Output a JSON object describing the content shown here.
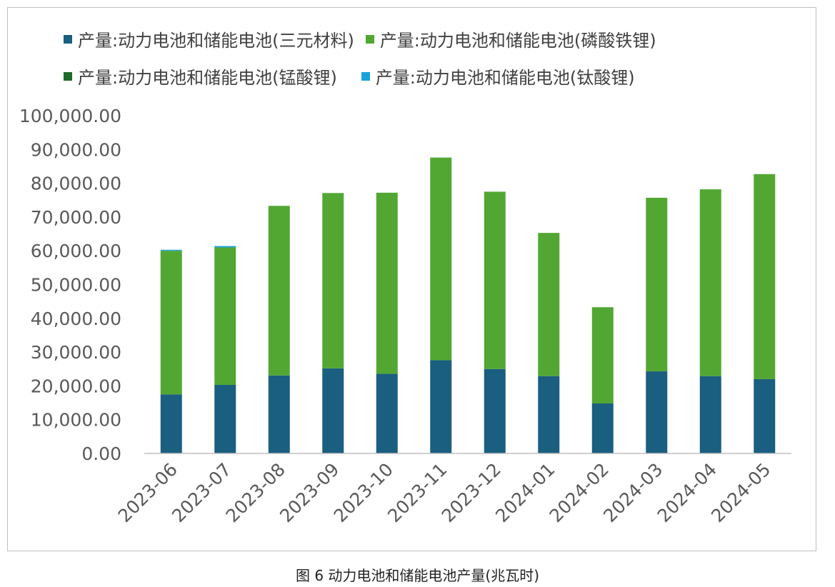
{
  "chart_data": {
    "type": "bar",
    "stacked": true,
    "categories": [
      "2023-06",
      "2023-07",
      "2023-08",
      "2023-09",
      "2023-10",
      "2023-11",
      "2023-12",
      "2024-01",
      "2024-02",
      "2024-03",
      "2024-04",
      "2024-05"
    ],
    "series": [
      {
        "name": "产量:动力电池和储能电池(三元材料)",
        "color": "#1a5e80",
        "values": [
          17500,
          20300,
          23100,
          25200,
          23600,
          27600,
          25000,
          22900,
          14800,
          24300,
          22900,
          22000
        ]
      },
      {
        "name": "产量:动力电池和储能电池(磷酸铁锂)",
        "color": "#52a733",
        "values": [
          42500,
          40700,
          50200,
          51900,
          53600,
          60000,
          52500,
          42400,
          28500,
          51400,
          55300,
          60700
        ]
      },
      {
        "name": "产量:动力电池和储能电池(锰酸锂)",
        "color": "#1f6b2a",
        "values": [
          0,
          0,
          0,
          0,
          0,
          0,
          0,
          0,
          0,
          0,
          0,
          0
        ]
      },
      {
        "name": "产量:动力电池和储能电池(钛酸锂)",
        "color": "#1aa3d9",
        "values": [
          300,
          400,
          0,
          0,
          0,
          0,
          0,
          0,
          0,
          0,
          0,
          0
        ]
      }
    ],
    "ylim": [
      0,
      100000
    ],
    "yticks": [
      "0.00",
      "10,000.00",
      "20,000.00",
      "30,000.00",
      "40,000.00",
      "50,000.00",
      "60,000.00",
      "70,000.00",
      "80,000.00",
      "90,000.00",
      "100,000.00"
    ],
    "title": "",
    "xlabel": "",
    "ylabel": "",
    "grid": false,
    "legend_position": "top"
  },
  "caption": "图 6 动力电池和储能电池产量(兆瓦时)"
}
